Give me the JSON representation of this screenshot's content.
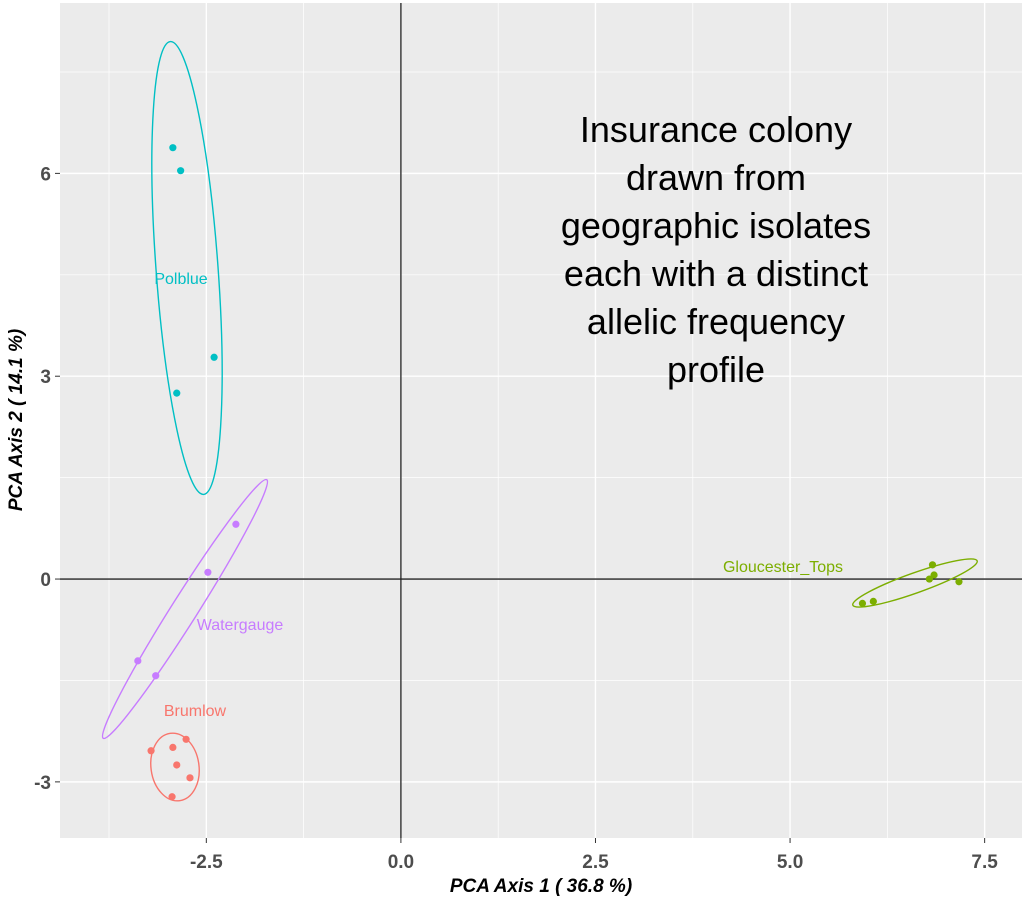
{
  "chart_data": {
    "type": "scatter",
    "title": "",
    "xlabel": "PCA Axis 1 ( 36.8 %)",
    "ylabel": "PCA Axis 2 ( 14.1 %)",
    "xlim": [
      -4.38,
      7.98
    ],
    "ylim": [
      -3.83,
      8.52
    ],
    "xticks": [
      -2.5,
      0.0,
      2.5,
      5.0,
      7.5
    ],
    "xtick_labels": [
      "-2.5",
      "0.0",
      "2.5",
      "5.0",
      "7.5"
    ],
    "yticks": [
      -3,
      0,
      3,
      6
    ],
    "ytick_labels": [
      "-3",
      "0",
      "3",
      "6"
    ],
    "grid": true,
    "reference_lines": {
      "x": 0,
      "y": 0
    },
    "series": [
      {
        "name": "Brumlow",
        "color": "#F8766D",
        "x": [
          -3.21,
          -2.93,
          -2.76,
          -2.88,
          -2.71,
          -2.94
        ],
        "y": [
          -2.54,
          -2.49,
          -2.37,
          -2.75,
          -2.94,
          -3.22
        ]
      },
      {
        "name": "Gloucester_Tops",
        "color": "#7CAE00",
        "x": [
          6.83,
          6.85,
          6.79,
          7.17,
          5.93,
          6.07
        ],
        "y": [
          0.21,
          0.06,
          0.0,
          -0.04,
          -0.36,
          -0.33
        ]
      },
      {
        "name": "Polblue",
        "color": "#00BFC4",
        "x": [
          -2.93,
          -2.83,
          -2.4,
          -2.88
        ],
        "y": [
          6.38,
          6.04,
          3.28,
          2.75
        ]
      },
      {
        "name": "Watergauge",
        "color": "#C77CFF",
        "x": [
          -2.12,
          -2.48,
          -3.38,
          -3.15
        ],
        "y": [
          0.81,
          0.1,
          -1.21,
          -1.43
        ]
      }
    ],
    "annotation": [
      "Insurance colony",
      "drawn from",
      "geographic isolates",
      "each with a distinct",
      "allelic frequency",
      "profile"
    ]
  }
}
